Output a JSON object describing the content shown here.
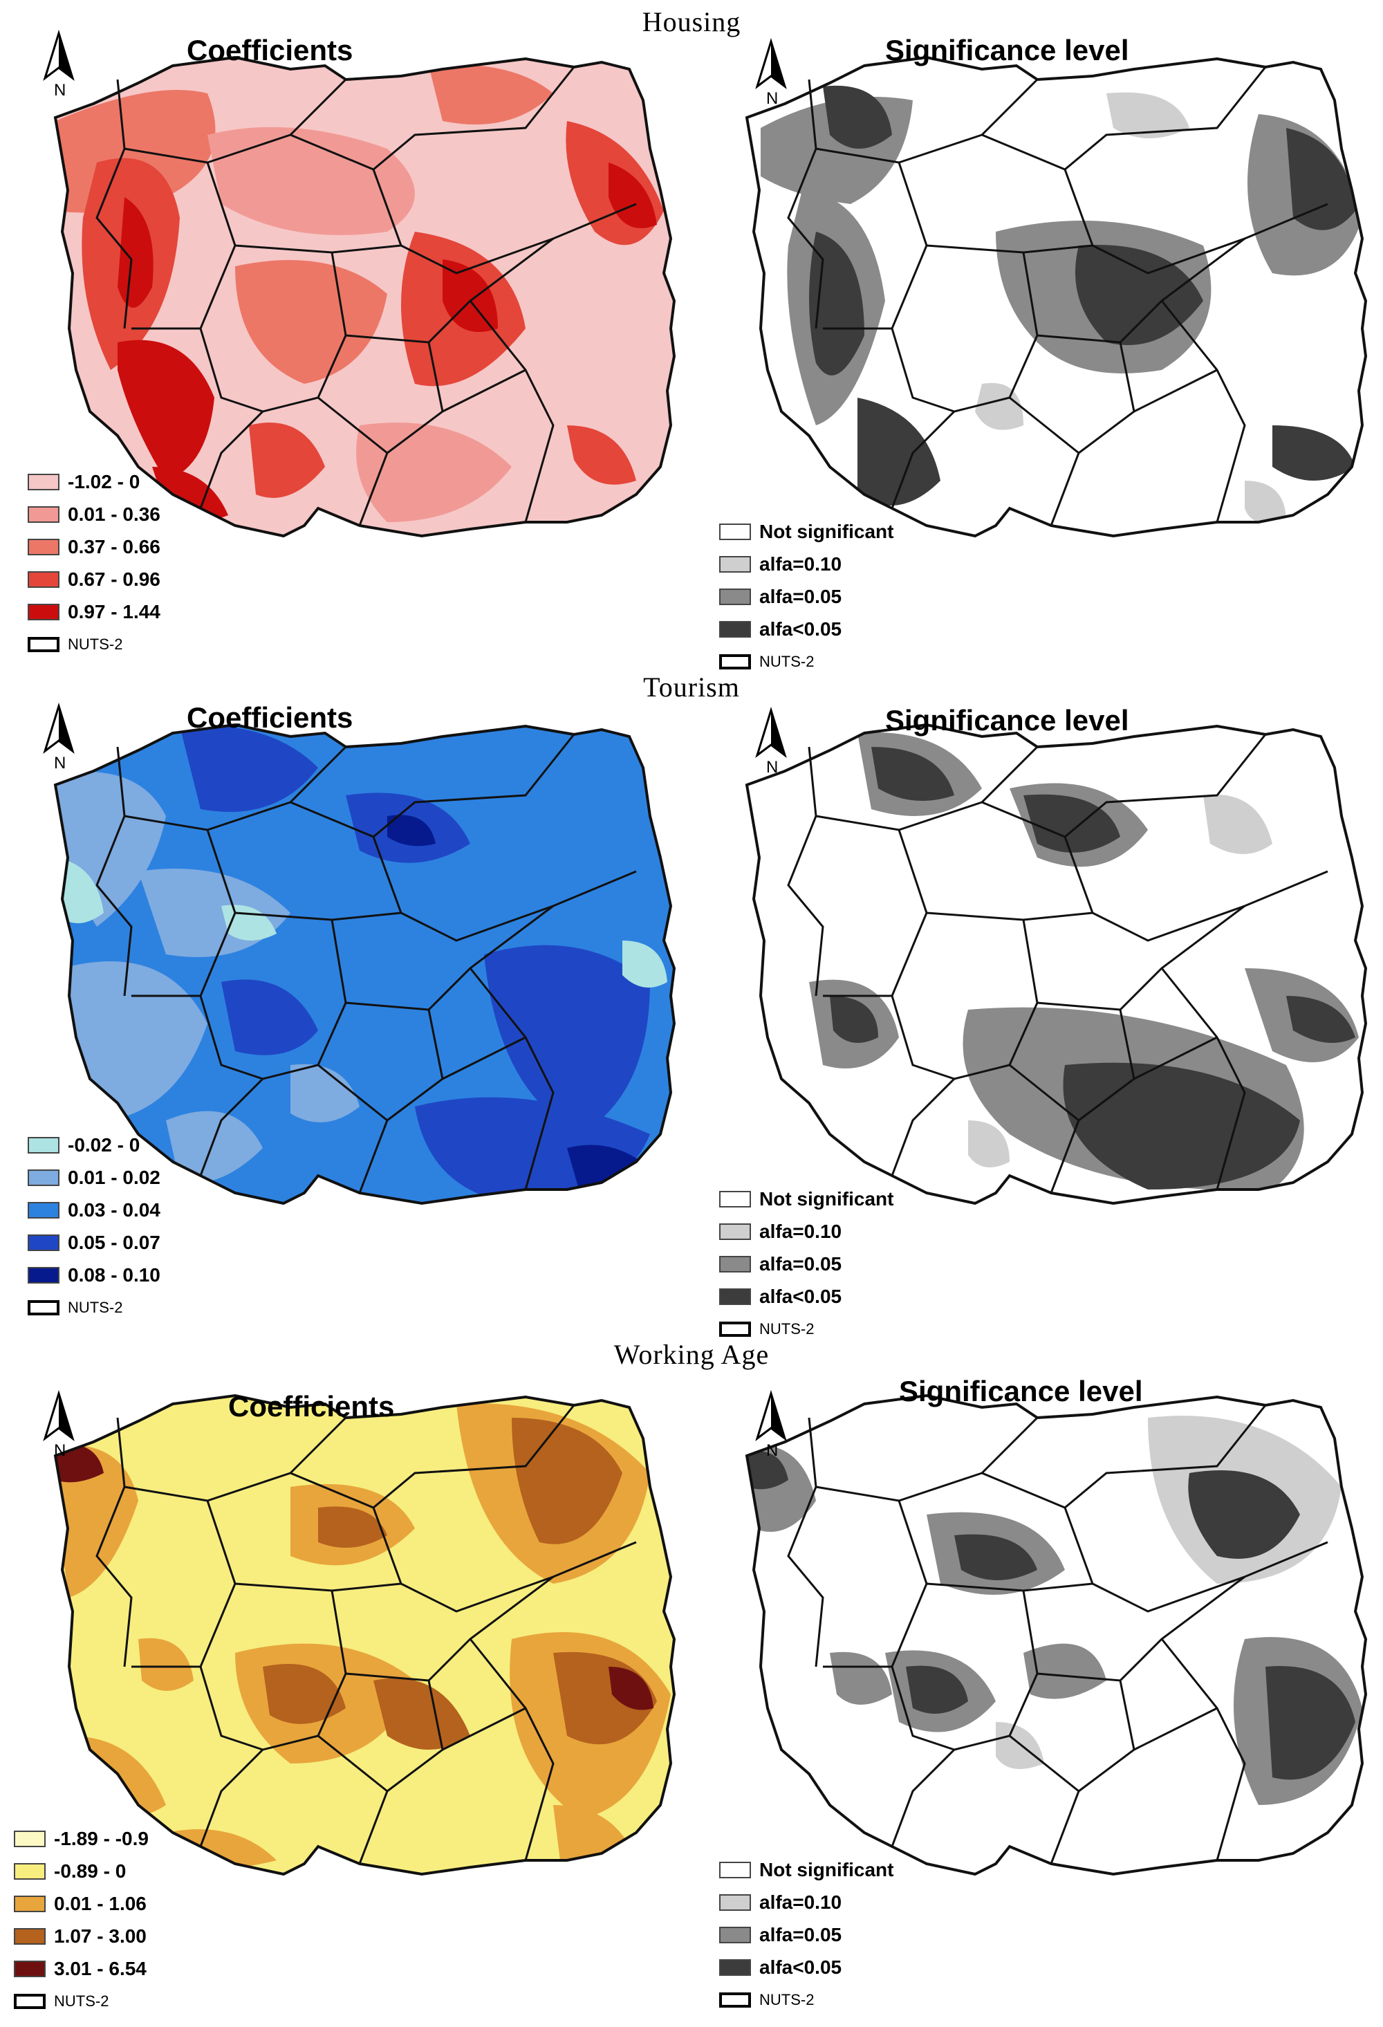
{
  "sections": [
    {
      "title": "Housing",
      "coef": {
        "title": "Coefficients",
        "colors": [
          "#f6c7c7",
          "#f19a95",
          "#ec7767",
          "#e4463a",
          "#cc0d0d"
        ],
        "legend": [
          "-1.02 - 0",
          "0.01 - 0.36",
          "0.37 - 0.66",
          "0.67 - 0.96",
          "0.97 - 1.44"
        ]
      },
      "sig": {
        "title": "Significance level",
        "colors": [
          "#ffffff",
          "#cfcfcf",
          "#8a8a8a",
          "#3c3c3c"
        ],
        "legend": [
          "Not significant",
          "alfa=0.10",
          "alfa=0.05",
          "alfa<0.05"
        ]
      }
    },
    {
      "title": "Tourism",
      "coef": {
        "title": "Coefficients",
        "colors": [
          "#aee3e3",
          "#7eabe0",
          "#2d82e0",
          "#1f47c5",
          "#061a8e"
        ],
        "legend": [
          "-0.02 - 0",
          "0.01 - 0.02",
          "0.03 - 0.04",
          "0.05 - 0.07",
          "0.08 - 0.10"
        ]
      },
      "sig": {
        "title": "Significance level",
        "colors": [
          "#ffffff",
          "#cfcfcf",
          "#8a8a8a",
          "#3c3c3c"
        ],
        "legend": [
          "Not significant",
          "alfa=0.10",
          "alfa=0.05",
          "alfa<0.05"
        ]
      }
    },
    {
      "title": "Working Age",
      "coef": {
        "title": "Coefficients",
        "colors": [
          "#fdf9c4",
          "#f7ee7f",
          "#e8a53c",
          "#b4621d",
          "#6f1010"
        ],
        "legend": [
          "-1.89 - -0.9",
          "-0.89 - 0",
          "0.01 - 1.06",
          "1.07 - 3.00",
          "3.01 - 6.54"
        ]
      },
      "sig": {
        "title": "Significance level",
        "colors": [
          "#ffffff",
          "#cfcfcf",
          "#8a8a8a",
          "#3c3c3c"
        ],
        "legend": [
          "Not significant",
          "alfa=0.10",
          "alfa=0.05",
          "alfa<0.05"
        ]
      }
    }
  ],
  "nuts_label": "NUTS-2",
  "north_label": "N"
}
